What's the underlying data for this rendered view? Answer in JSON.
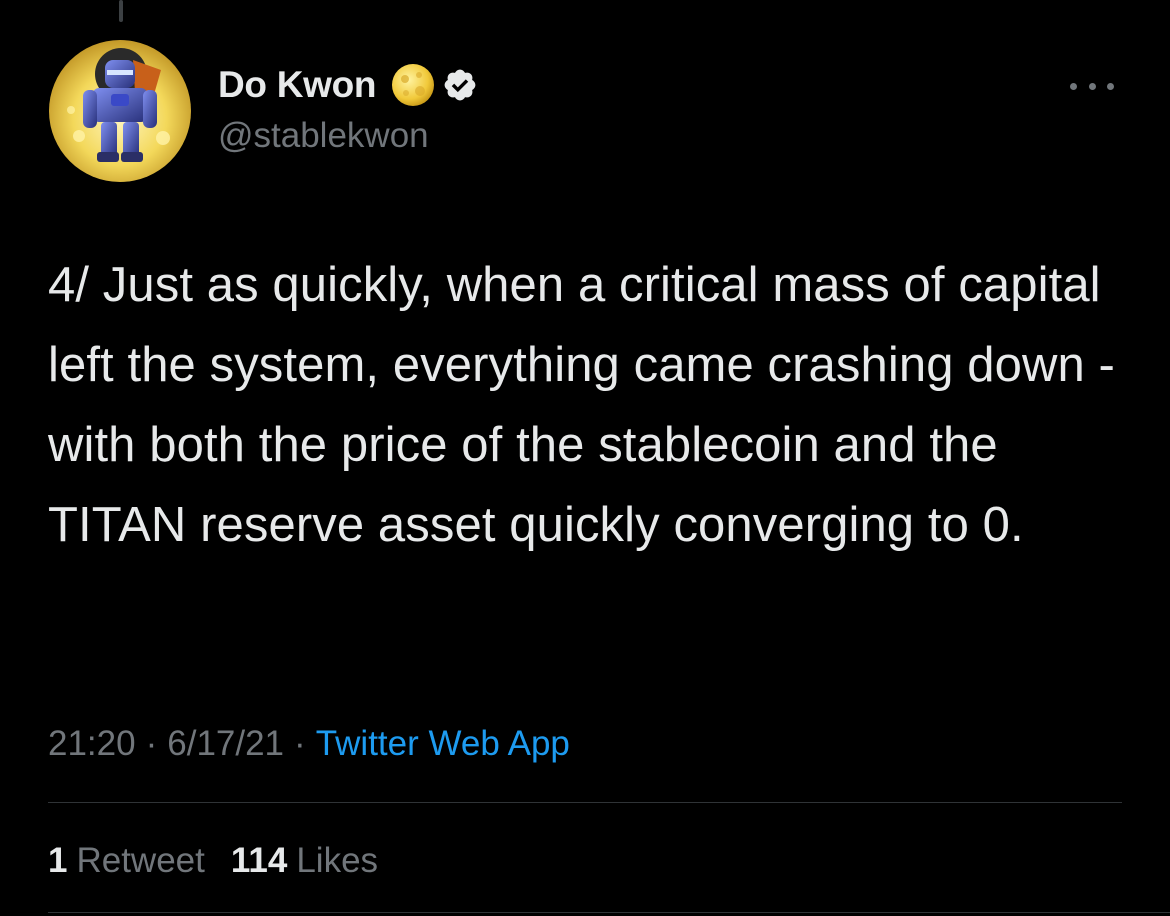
{
  "author": {
    "display_name": "Do Kwon",
    "handle": "@stablekwon",
    "name_emoji": "full-moon-emoji",
    "verified": true,
    "avatar_icon": "robot-avatar"
  },
  "tweet": {
    "text": "4/ Just as quickly, when a critical mass of capital left the system, everything came crashing down - with both the price of the stablecoin and the TITAN reserve asset quickly converging to 0.",
    "time": "21:20",
    "separator": "·",
    "date": "6/17/21",
    "source": "Twitter Web App"
  },
  "stats": {
    "retweets_count": "1",
    "retweets_label": "Retweet",
    "likes_count": "114",
    "likes_label": "Likes"
  },
  "icons": {
    "more": "more-dots-icon",
    "verified": "verified-badge-icon"
  },
  "colors": {
    "background": "#000000",
    "text": "#e7e9ea",
    "secondary": "#71767b",
    "link": "#1d9bf0",
    "divider": "#2f3336"
  }
}
